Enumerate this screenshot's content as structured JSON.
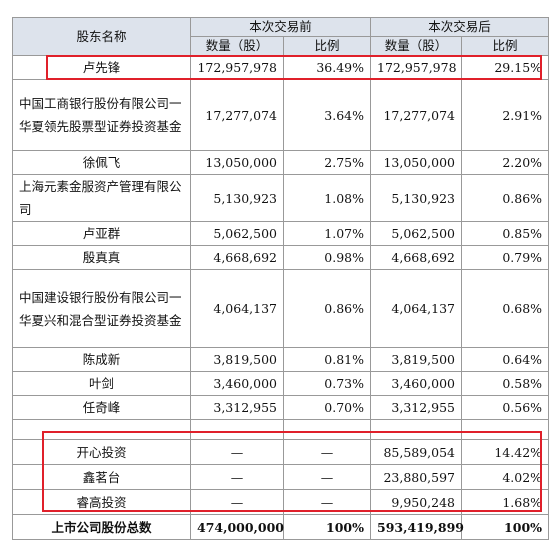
{
  "header": {
    "name": "股东名称",
    "before": "本次交易前",
    "after": "本次交易后",
    "columns": [
      "数量（股）",
      "比例",
      "数量（股）",
      "比例"
    ]
  },
  "rows": [
    [
      "卢先锋",
      "172,957,978",
      "36.49%",
      "172,957,978",
      "29.15%"
    ],
    [
      "中国工商银行股份有限公司一华夏领先股票型证券投资基金",
      "17,277,074",
      "3.64%",
      "17,277,074",
      "2.91%"
    ],
    [
      "徐佩飞",
      "13,050,000",
      "2.75%",
      "13,050,000",
      "2.20%"
    ],
    [
      "上海元素金服资产管理有限公司",
      "5,130,923",
      "1.08%",
      "5,130,923",
      "0.86%"
    ],
    [
      "卢亚群",
      "5,062,500",
      "1.07%",
      "5,062,500",
      "0.85%"
    ],
    [
      "殷真真",
      "4,668,692",
      "0.98%",
      "4,668,692",
      "0.79%"
    ],
    [
      "中国建设银行股份有限公司一华夏兴和混合型证券投资基金",
      "4,064,137",
      "0.86%",
      "4,064,137",
      "0.68%"
    ],
    [
      "陈成新",
      "3,819,500",
      "0.81%",
      "3,819,500",
      "0.64%"
    ],
    [
      "叶剑",
      "3,460,000",
      "0.73%",
      "3,460,000",
      "0.58%"
    ],
    [
      "任奇峰",
      "3,312,955",
      "0.70%",
      "3,312,955",
      "0.56%"
    ]
  ],
  "new_rows": [
    [
      "开心投资",
      "—",
      "—",
      "85,589,054",
      "14.42%"
    ],
    [
      "鑫茗台",
      "—",
      "—",
      "23,880,597",
      "4.02%"
    ],
    [
      "睿高投资",
      "—",
      "—",
      "9,950,248",
      "1.68%"
    ]
  ],
  "total": [
    "上市公司股份总数",
    "474,000,000",
    "100%",
    "593,419,899",
    "100%"
  ]
}
